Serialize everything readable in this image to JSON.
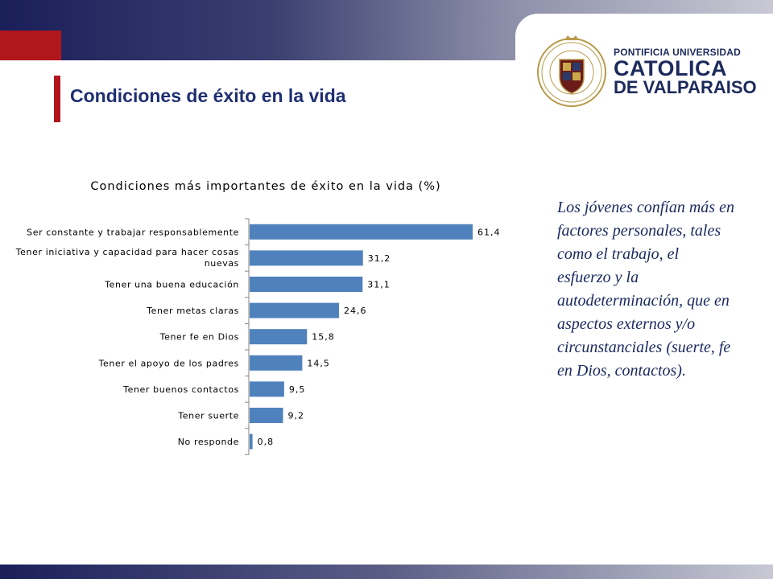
{
  "slide": {
    "title": "Condiciones de éxito en la vida",
    "side_text": "Los jóvenes confían más en factores personales, tales como el trabajo, el esfuerzo y la autodeterminación, que en aspectos externos y/o circunstanciales (suerte, fe en Dios, contactos)."
  },
  "logo": {
    "line1": "PONTIFICIA UNIVERSIDAD",
    "line2": "CATOLICA",
    "line3": "DE VALPARAISO"
  },
  "colors": {
    "bar": "#4f81bd",
    "title": "#1f2f72",
    "accent_red": "#b1161c",
    "band_dark": "#1a1f5a"
  },
  "chart_data": {
    "type": "bar",
    "orientation": "horizontal",
    "title": "Condiciones más importantes de éxito en la vida (%)",
    "categories": [
      [
        "Ser constante y trabajar responsablemente"
      ],
      [
        "Tener iniciativa y capacidad para hacer cosas",
        "nuevas"
      ],
      [
        "Tener una buena educación"
      ],
      [
        "Tener metas claras"
      ],
      [
        "Tener fe en Dios"
      ],
      [
        "Tener el apoyo de los padres"
      ],
      [
        "Tener buenos contactos"
      ],
      [
        "Tener suerte"
      ],
      [
        "No responde"
      ]
    ],
    "values": [
      61.4,
      31.2,
      31.1,
      24.6,
      15.8,
      14.5,
      9.5,
      9.2,
      0.8
    ],
    "value_labels": [
      "61,4",
      "31,2",
      "31,1",
      "24,6",
      "15,8",
      "14,5",
      "9,5",
      "9,2",
      "0,8"
    ],
    "xlim": [
      0,
      70
    ],
    "grid": false,
    "legend": "none"
  }
}
